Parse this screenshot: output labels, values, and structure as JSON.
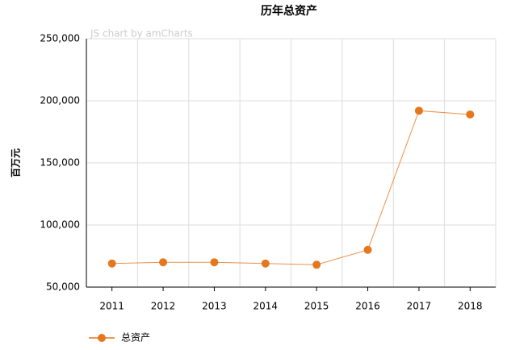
{
  "chart_data": {
    "type": "line",
    "title": "历年总资产",
    "watermark": "JS chart by amCharts",
    "ylabel": "百万元",
    "categories": [
      "2011",
      "2012",
      "2013",
      "2014",
      "2015",
      "2016",
      "2017",
      "2018"
    ],
    "series": [
      {
        "name": "总资产",
        "color": "#e5771e",
        "values": [
          69000,
          70000,
          70000,
          69000,
          68000,
          80000,
          192000,
          189000
        ]
      }
    ],
    "ylim": [
      50000,
      250000
    ],
    "yticks": [
      {
        "value": 50000,
        "label": "50,000"
      },
      {
        "value": 100000,
        "label": "100,000"
      },
      {
        "value": 150000,
        "label": "150,000"
      },
      {
        "value": 200000,
        "label": "200,000"
      },
      {
        "value": 250000,
        "label": "250,000"
      }
    ],
    "grid": true,
    "legend": "bottom-left"
  }
}
